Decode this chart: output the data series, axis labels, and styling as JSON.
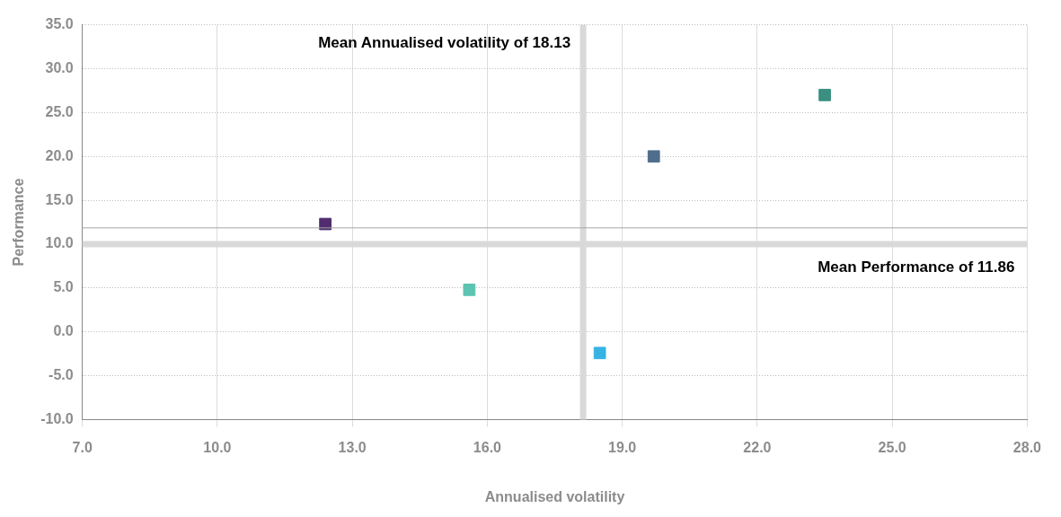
{
  "chart_data": {
    "type": "scatter",
    "xlabel": "Annualised volatility",
    "ylabel": "Performance",
    "x": [
      12.4,
      15.6,
      18.5,
      19.7,
      23.5
    ],
    "values": [
      12.3,
      4.8,
      -2.4,
      20.0,
      27.0
    ],
    "colors": [
      "#4f2d6e",
      "#5cc4b0",
      "#36b3e3",
      "#4e6e8c",
      "#3a8f80"
    ],
    "marker": "square",
    "grid": true,
    "xlim": [
      7,
      28
    ],
    "xticks": [
      {
        "value": 7,
        "label": "7.0"
      },
      {
        "value": 10,
        "label": "10.0"
      },
      {
        "value": 13,
        "label": "13.0"
      },
      {
        "value": 16,
        "label": "16.0"
      },
      {
        "value": 19,
        "label": "19.0"
      },
      {
        "value": 22,
        "label": "22.0"
      },
      {
        "value": 25,
        "label": "25.0"
      },
      {
        "value": 28,
        "label": "28.0"
      }
    ],
    "ylim": [
      -10,
      35
    ],
    "yticks": [
      {
        "value": -10,
        "label": "-10.0"
      },
      {
        "value": -5,
        "label": "-5.0"
      },
      {
        "value": 0,
        "label": "0.0"
      },
      {
        "value": 5,
        "label": "5.0"
      },
      {
        "value": 10,
        "label": "10.0"
      },
      {
        "value": 15,
        "label": "15.0"
      },
      {
        "value": 20,
        "label": "20.0"
      },
      {
        "value": 25,
        "label": "25.0"
      },
      {
        "value": 30,
        "label": "30.0"
      },
      {
        "value": 35,
        "label": "35.0"
      }
    ],
    "ref_lines": [
      {
        "axis": "x",
        "value": 18.13,
        "label": "Mean Annualised volatility of 18.13",
        "color": "#d9d9d9"
      },
      {
        "axis": "y",
        "value": 11.86,
        "label": "Mean Performance of 11.86",
        "color": "#a6a6a6"
      },
      {
        "axis": "y",
        "value": 10,
        "label": null,
        "color": "#d9d9d9"
      }
    ]
  }
}
